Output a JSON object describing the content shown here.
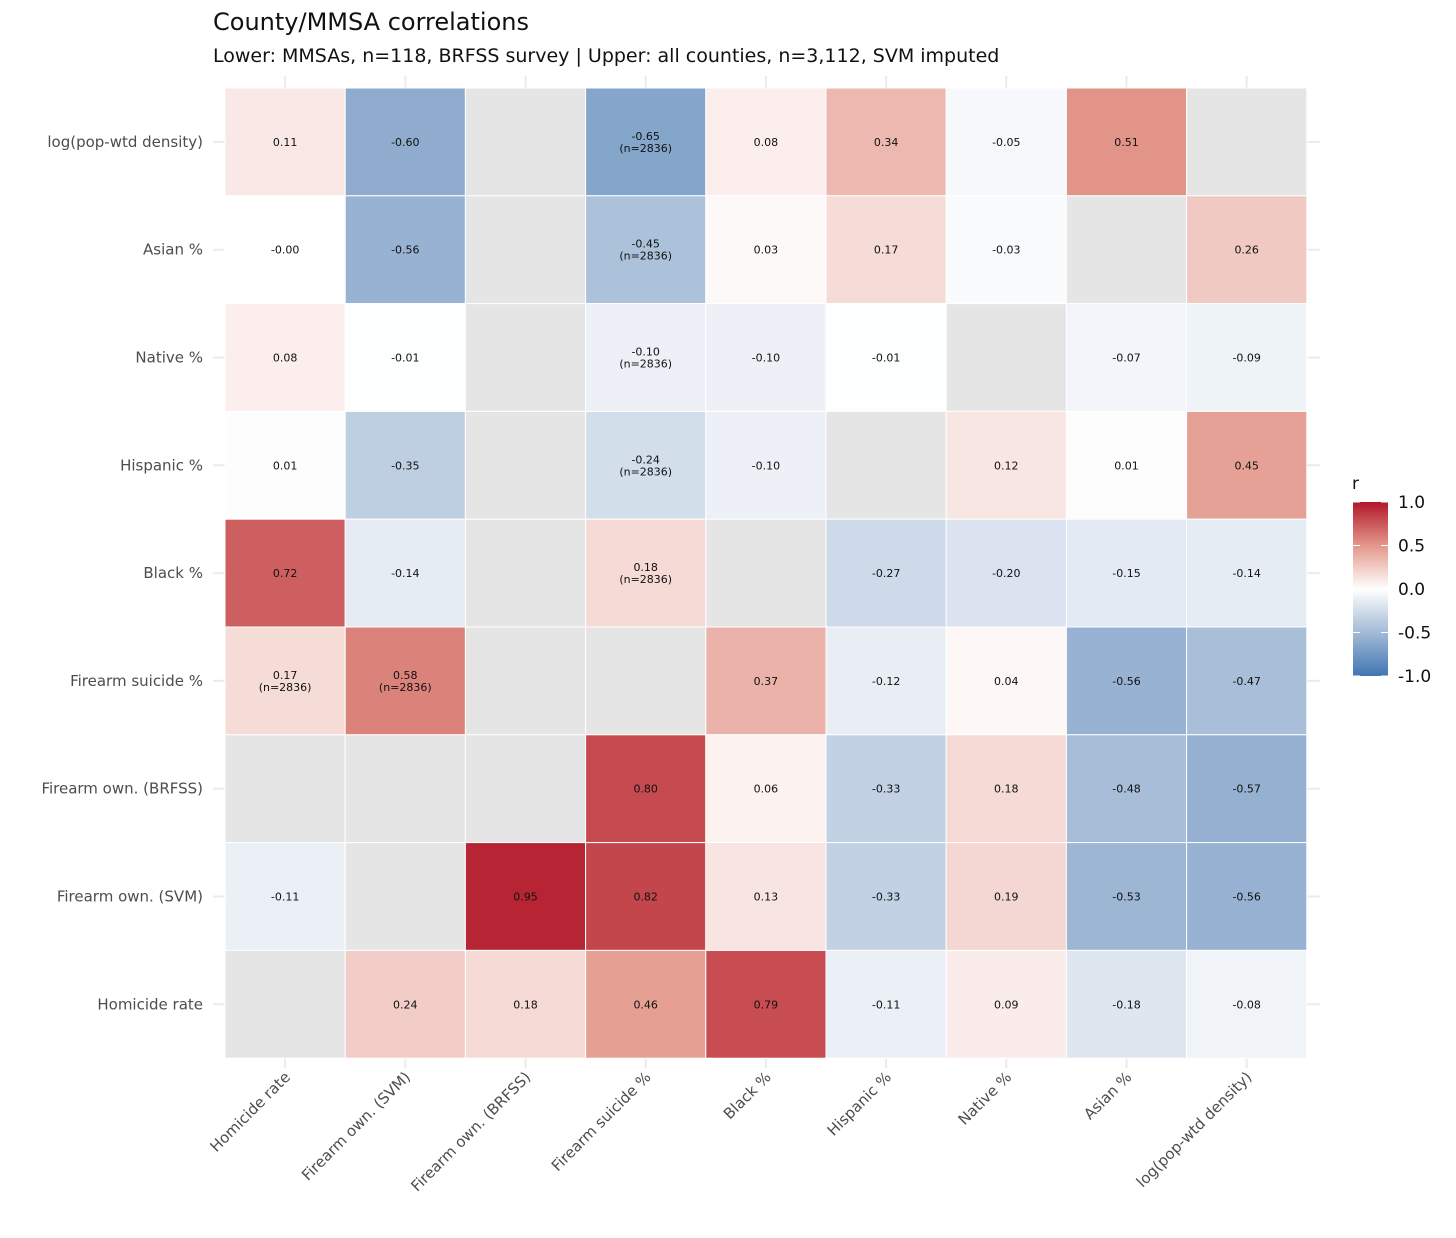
{
  "chart_data": {
    "type": "heatmap",
    "title": "County/MMSA correlations",
    "subtitle": "Lower: MMSAs, n=118, BRFSS survey | Upper: all counties, n=3,112, SVM imputed",
    "x_labels": [
      "Homicide rate",
      "Firearm own. (SVM)",
      "Firearm own. (BRFSS)",
      "Firearm suicide %",
      "Black %",
      "Hispanic %",
      "Native %",
      "Asian %",
      "log(pop-wtd density)"
    ],
    "y_labels_top_to_bottom": [
      "log(pop-wtd density)",
      "Asian %",
      "Native %",
      "Hispanic %",
      "Black %",
      "Firearm suicide %",
      "Firearm own. (BRFSS)",
      "Firearm own. (SVM)",
      "Homicide rate"
    ],
    "values": [
      [
        0.11,
        -0.6,
        null,
        -0.65,
        0.08,
        0.34,
        -0.05,
        0.51,
        null
      ],
      [
        -0.0,
        -0.56,
        null,
        -0.45,
        0.03,
        0.17,
        -0.03,
        null,
        0.26
      ],
      [
        0.08,
        -0.01,
        null,
        -0.1,
        -0.1,
        -0.01,
        null,
        -0.07,
        -0.09
      ],
      [
        0.01,
        -0.35,
        null,
        -0.24,
        -0.1,
        null,
        0.12,
        0.01,
        0.45
      ],
      [
        0.72,
        -0.14,
        null,
        0.18,
        null,
        -0.27,
        -0.2,
        -0.15,
        -0.14
      ],
      [
        0.17,
        0.58,
        null,
        null,
        0.37,
        -0.12,
        0.04,
        -0.56,
        -0.47
      ],
      [
        null,
        null,
        null,
        0.8,
        0.06,
        -0.33,
        0.18,
        -0.48,
        -0.57
      ],
      [
        -0.11,
        null,
        0.95,
        0.82,
        0.13,
        -0.33,
        0.19,
        -0.53,
        -0.56
      ],
      [
        null,
        0.24,
        0.18,
        0.46,
        0.79,
        -0.11,
        0.09,
        -0.18,
        -0.08
      ]
    ],
    "cell_notes": [
      {
        "row": 0,
        "col": 3,
        "note": "(n=2836)"
      },
      {
        "row": 1,
        "col": 3,
        "note": "(n=2836)"
      },
      {
        "row": 2,
        "col": 3,
        "note": "(n=2836)"
      },
      {
        "row": 3,
        "col": 3,
        "note": "(n=2836)"
      },
      {
        "row": 4,
        "col": 3,
        "note": "(n=2836)"
      },
      {
        "row": 5,
        "col": 0,
        "note": "(n=2836)"
      },
      {
        "row": 5,
        "col": 1,
        "note": "(n=2836)"
      }
    ],
    "legend": {
      "title": "r",
      "ticks": [
        "1.0",
        "0.5",
        "0.0",
        "-0.5",
        "-1.0"
      ],
      "tick_values": [
        1,
        0.5,
        0,
        -0.5,
        -1
      ],
      "range": [
        -1,
        1
      ],
      "placement": "right"
    },
    "colors": {
      "neg": "#3f76b2",
      "mid": "#ffffff",
      "pos": "#b2182b",
      "na": "#e5e5e5"
    }
  }
}
